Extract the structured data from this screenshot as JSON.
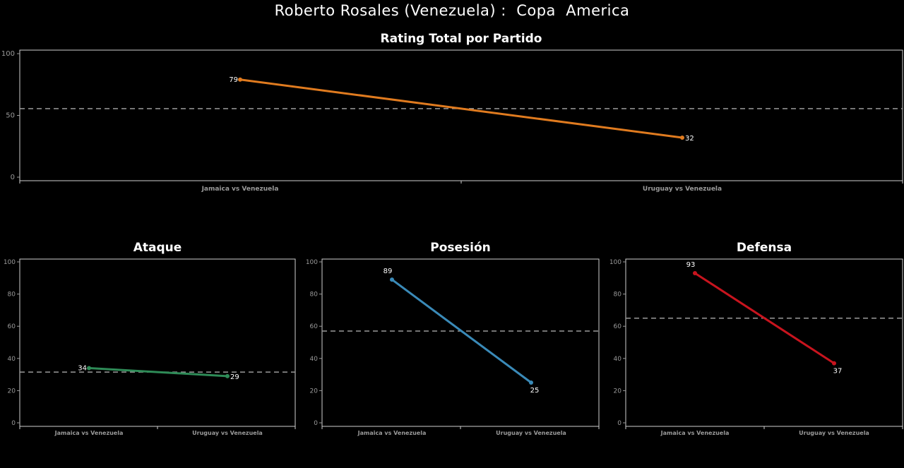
{
  "title": "Roberto Rosales (Venezuela) :  Copa  America",
  "chart_data": [
    {
      "type": "line",
      "title": "Rating Total por Partido",
      "categories": [
        "Jamaica vs Venezuela",
        "Uruguay vs Venezuela"
      ],
      "values": [
        79,
        32
      ],
      "average": 55.5,
      "ylim": [
        0,
        100
      ],
      "yticks": [
        0,
        50,
        100
      ],
      "color": "#e07b1f",
      "grid": false
    },
    {
      "type": "line",
      "title": "Ataque",
      "categories": [
        "Jamaica vs Venezuela",
        "Uruguay vs Venezuela"
      ],
      "values": [
        34,
        29
      ],
      "average": 31.5,
      "ylim": [
        0,
        100
      ],
      "yticks": [
        0,
        20,
        40,
        60,
        80,
        100
      ],
      "color": "#2e8b57",
      "grid": false
    },
    {
      "type": "line",
      "title": "Posesión",
      "categories": [
        "Jamaica vs Venezuela",
        "Uruguay vs Venezuela"
      ],
      "values": [
        89,
        25
      ],
      "average": 57,
      "ylim": [
        0,
        100
      ],
      "yticks": [
        0,
        20,
        40,
        60,
        80,
        100
      ],
      "color": "#3a8ab8",
      "grid": false
    },
    {
      "type": "line",
      "title": "Defensa",
      "categories": [
        "Jamaica vs Venezuela",
        "Uruguay vs Venezuela"
      ],
      "values": [
        93,
        37
      ],
      "average": 65,
      "ylim": [
        0,
        100
      ],
      "yticks": [
        0,
        20,
        40,
        60,
        80,
        100
      ],
      "color": "#c8141e",
      "grid": false
    }
  ]
}
